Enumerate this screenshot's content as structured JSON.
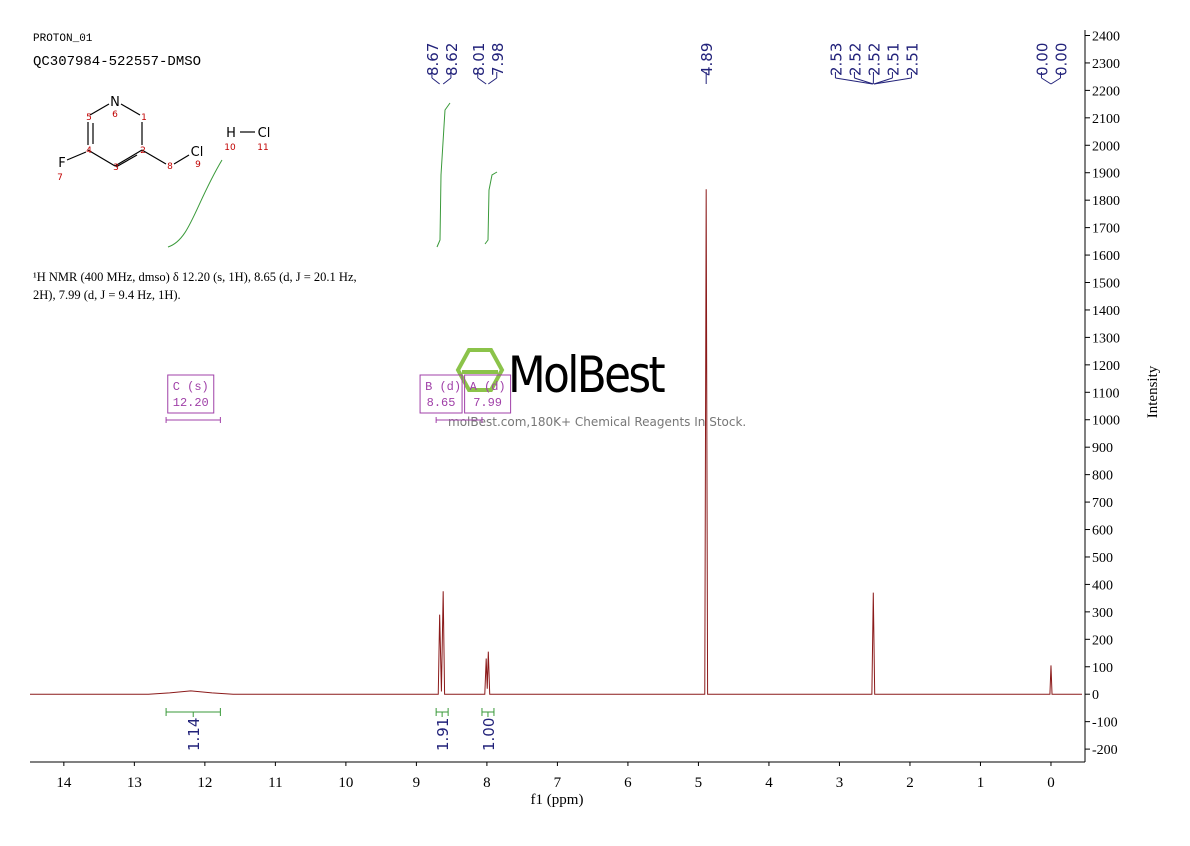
{
  "header": {
    "experiment": "PROTON_01",
    "sample": "QC307984-522557-DMSO"
  },
  "structure": {
    "labels": [
      "N",
      "6",
      "5",
      "1",
      "4",
      "2",
      "3",
      "F",
      "7",
      "8",
      "Cl",
      "9",
      "H",
      "10",
      "Cl",
      "11"
    ]
  },
  "description": [
    "¹H NMR (400 MHz, dmso) δ 12.20 (s, 1H), 8.65 (d, J = 20.1 Hz,",
    "2H), 7.99 (d, J = 9.4 Hz, 1H)."
  ],
  "watermark": {
    "brand": "MolBest",
    "tagline": "molBest.com,180K+ Chemical Reagents In Stock."
  },
  "chart_data": {
    "type": "line",
    "color": "#8b1a1a",
    "x_label": "f1 (ppm)",
    "y_label": "Intensity",
    "x": [
      14.48,
      12.8,
      12.5,
      12.2,
      11.9,
      11.6,
      8.8,
      8.69,
      8.67,
      8.645,
      8.62,
      8.6,
      8.03,
      8.01,
      7.995,
      7.98,
      7.96,
      4.91,
      4.89,
      4.87,
      2.54,
      2.52,
      2.5,
      0.015,
      0,
      -0.015,
      -0.44
    ],
    "values": [
      0,
      0,
      5,
      12,
      5,
      0,
      0,
      0,
      290,
      10,
      375,
      0,
      0,
      130,
      20,
      155,
      0,
      0,
      1840,
      0,
      0,
      370,
      0,
      0,
      105,
      0,
      0
    ],
    "xlim": [
      14.48,
      -0.44
    ],
    "ylim": [
      -247,
      2420
    ],
    "xticks": [
      14,
      13,
      12,
      11,
      10,
      9,
      8,
      7,
      6,
      5,
      4,
      3,
      2,
      1,
      0
    ],
    "yticks": [
      -200,
      -100,
      0,
      100,
      200,
      300,
      400,
      500,
      600,
      700,
      800,
      900,
      1000,
      1100,
      1200,
      1300,
      1400,
      1500,
      1600,
      1700,
      1800,
      1900,
      2000,
      2100,
      2200,
      2300,
      2400
    ],
    "peak_labels": [
      8.67,
      8.62,
      8.01,
      7.98,
      4.89,
      2.53,
      2.52,
      2.52,
      2.51,
      2.51,
      {
        "value": 0,
        "label": "0.00"
      },
      {
        "value": 0,
        "label": "0.00"
      }
    ],
    "integrals": {
      "ranges": [
        [
          12.55,
          11.78
        ],
        [
          8.72,
          8.55
        ],
        [
          8.07,
          7.9
        ]
      ],
      "values": [
        1.14,
        1.91,
        1
      ],
      "value_labels": [
        "1.14",
        "1.91",
        "1.00"
      ]
    },
    "multiplets": {
      "labels": [
        "C (s)",
        "B (d)",
        "A (d)"
      ],
      "shifts": [
        12.2,
        8.65,
        7.99
      ],
      "shift_labels": [
        "12.20",
        "8.65",
        "7.99"
      ]
    }
  }
}
